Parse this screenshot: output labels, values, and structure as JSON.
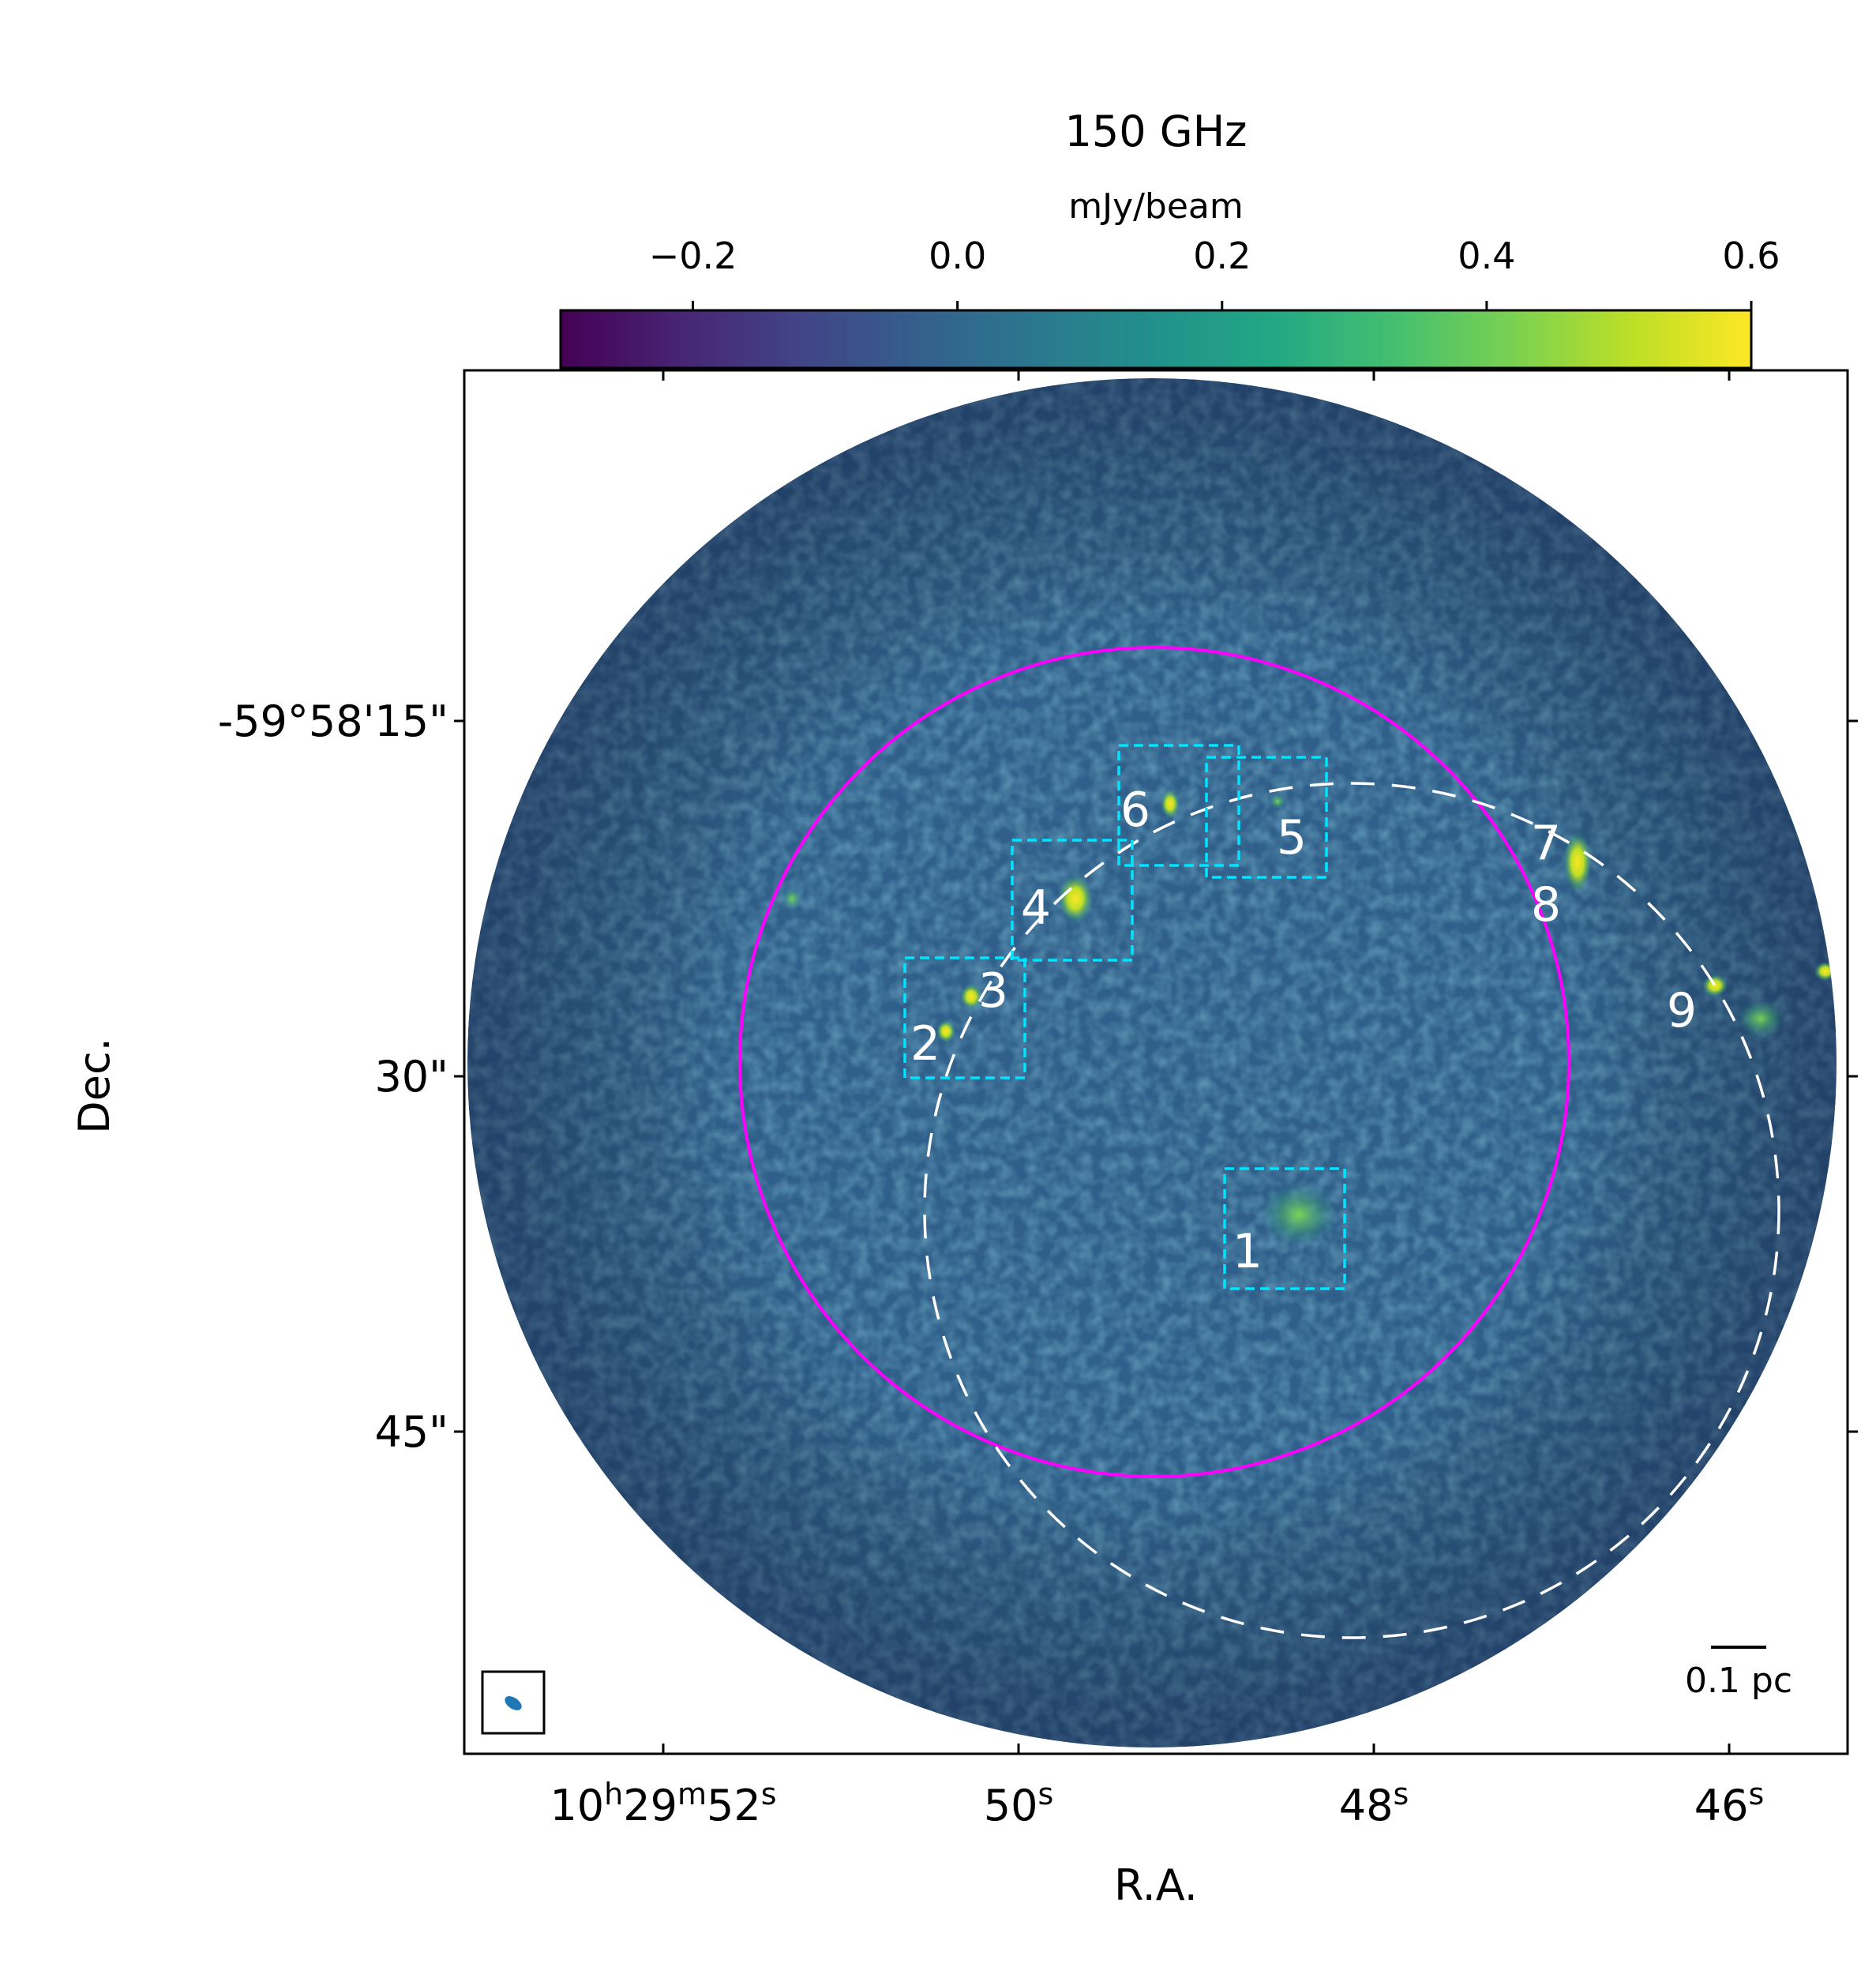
{
  "chart_data": {
    "type": "heatmap",
    "title": "150 GHz",
    "colorbar": {
      "label": "mJy/beam",
      "ticks": [
        "−0.2",
        "0.0",
        "0.2",
        "0.4",
        "0.6"
      ],
      "tick_values": [
        -0.2,
        0.0,
        0.2,
        0.4,
        0.6
      ],
      "range": [
        -0.3,
        0.6
      ],
      "colormap": "viridis",
      "location": "top"
    },
    "xlabel": "R.A.",
    "ylabel": "Dec.",
    "x_ticks": [
      {
        "label": "10h29m52s",
        "base": "10",
        "parts": [
          [
            "h",
            "29"
          ],
          [
            "m",
            "52"
          ],
          [
            "s",
            ""
          ]
        ]
      },
      {
        "label": "50s",
        "base": "50",
        "parts": [
          [
            "s",
            ""
          ]
        ]
      },
      {
        "label": "48s",
        "base": "48",
        "parts": [
          [
            "s",
            ""
          ]
        ]
      },
      {
        "label": "46s",
        "base": "46",
        "parts": [
          [
            "s",
            ""
          ]
        ]
      }
    ],
    "y_ticks": [
      "-59°58'15\"",
      "30\"",
      "45\""
    ],
    "field_of_view": "circular",
    "annotations": {
      "boxes": [
        "1",
        "2",
        "3",
        "4",
        "5",
        "6"
      ],
      "source_labels": [
        "1",
        "2",
        "3",
        "4",
        "5",
        "6",
        "7",
        "8",
        "9"
      ],
      "circles": [
        {
          "style": "solid",
          "color": "#ff00ff"
        },
        {
          "style": "dashed",
          "color": "#ffffff"
        }
      ],
      "scale_bar": "0.1 pc",
      "beam": "ellipse"
    },
    "grid": false
  },
  "colors": {
    "box": "#00e5ff",
    "solid_circle": "#ff00ff",
    "dashed_circle": "#ffffff",
    "labels": "#ffffff",
    "beam": "#1f77b4",
    "background": "#2f5f8a"
  }
}
